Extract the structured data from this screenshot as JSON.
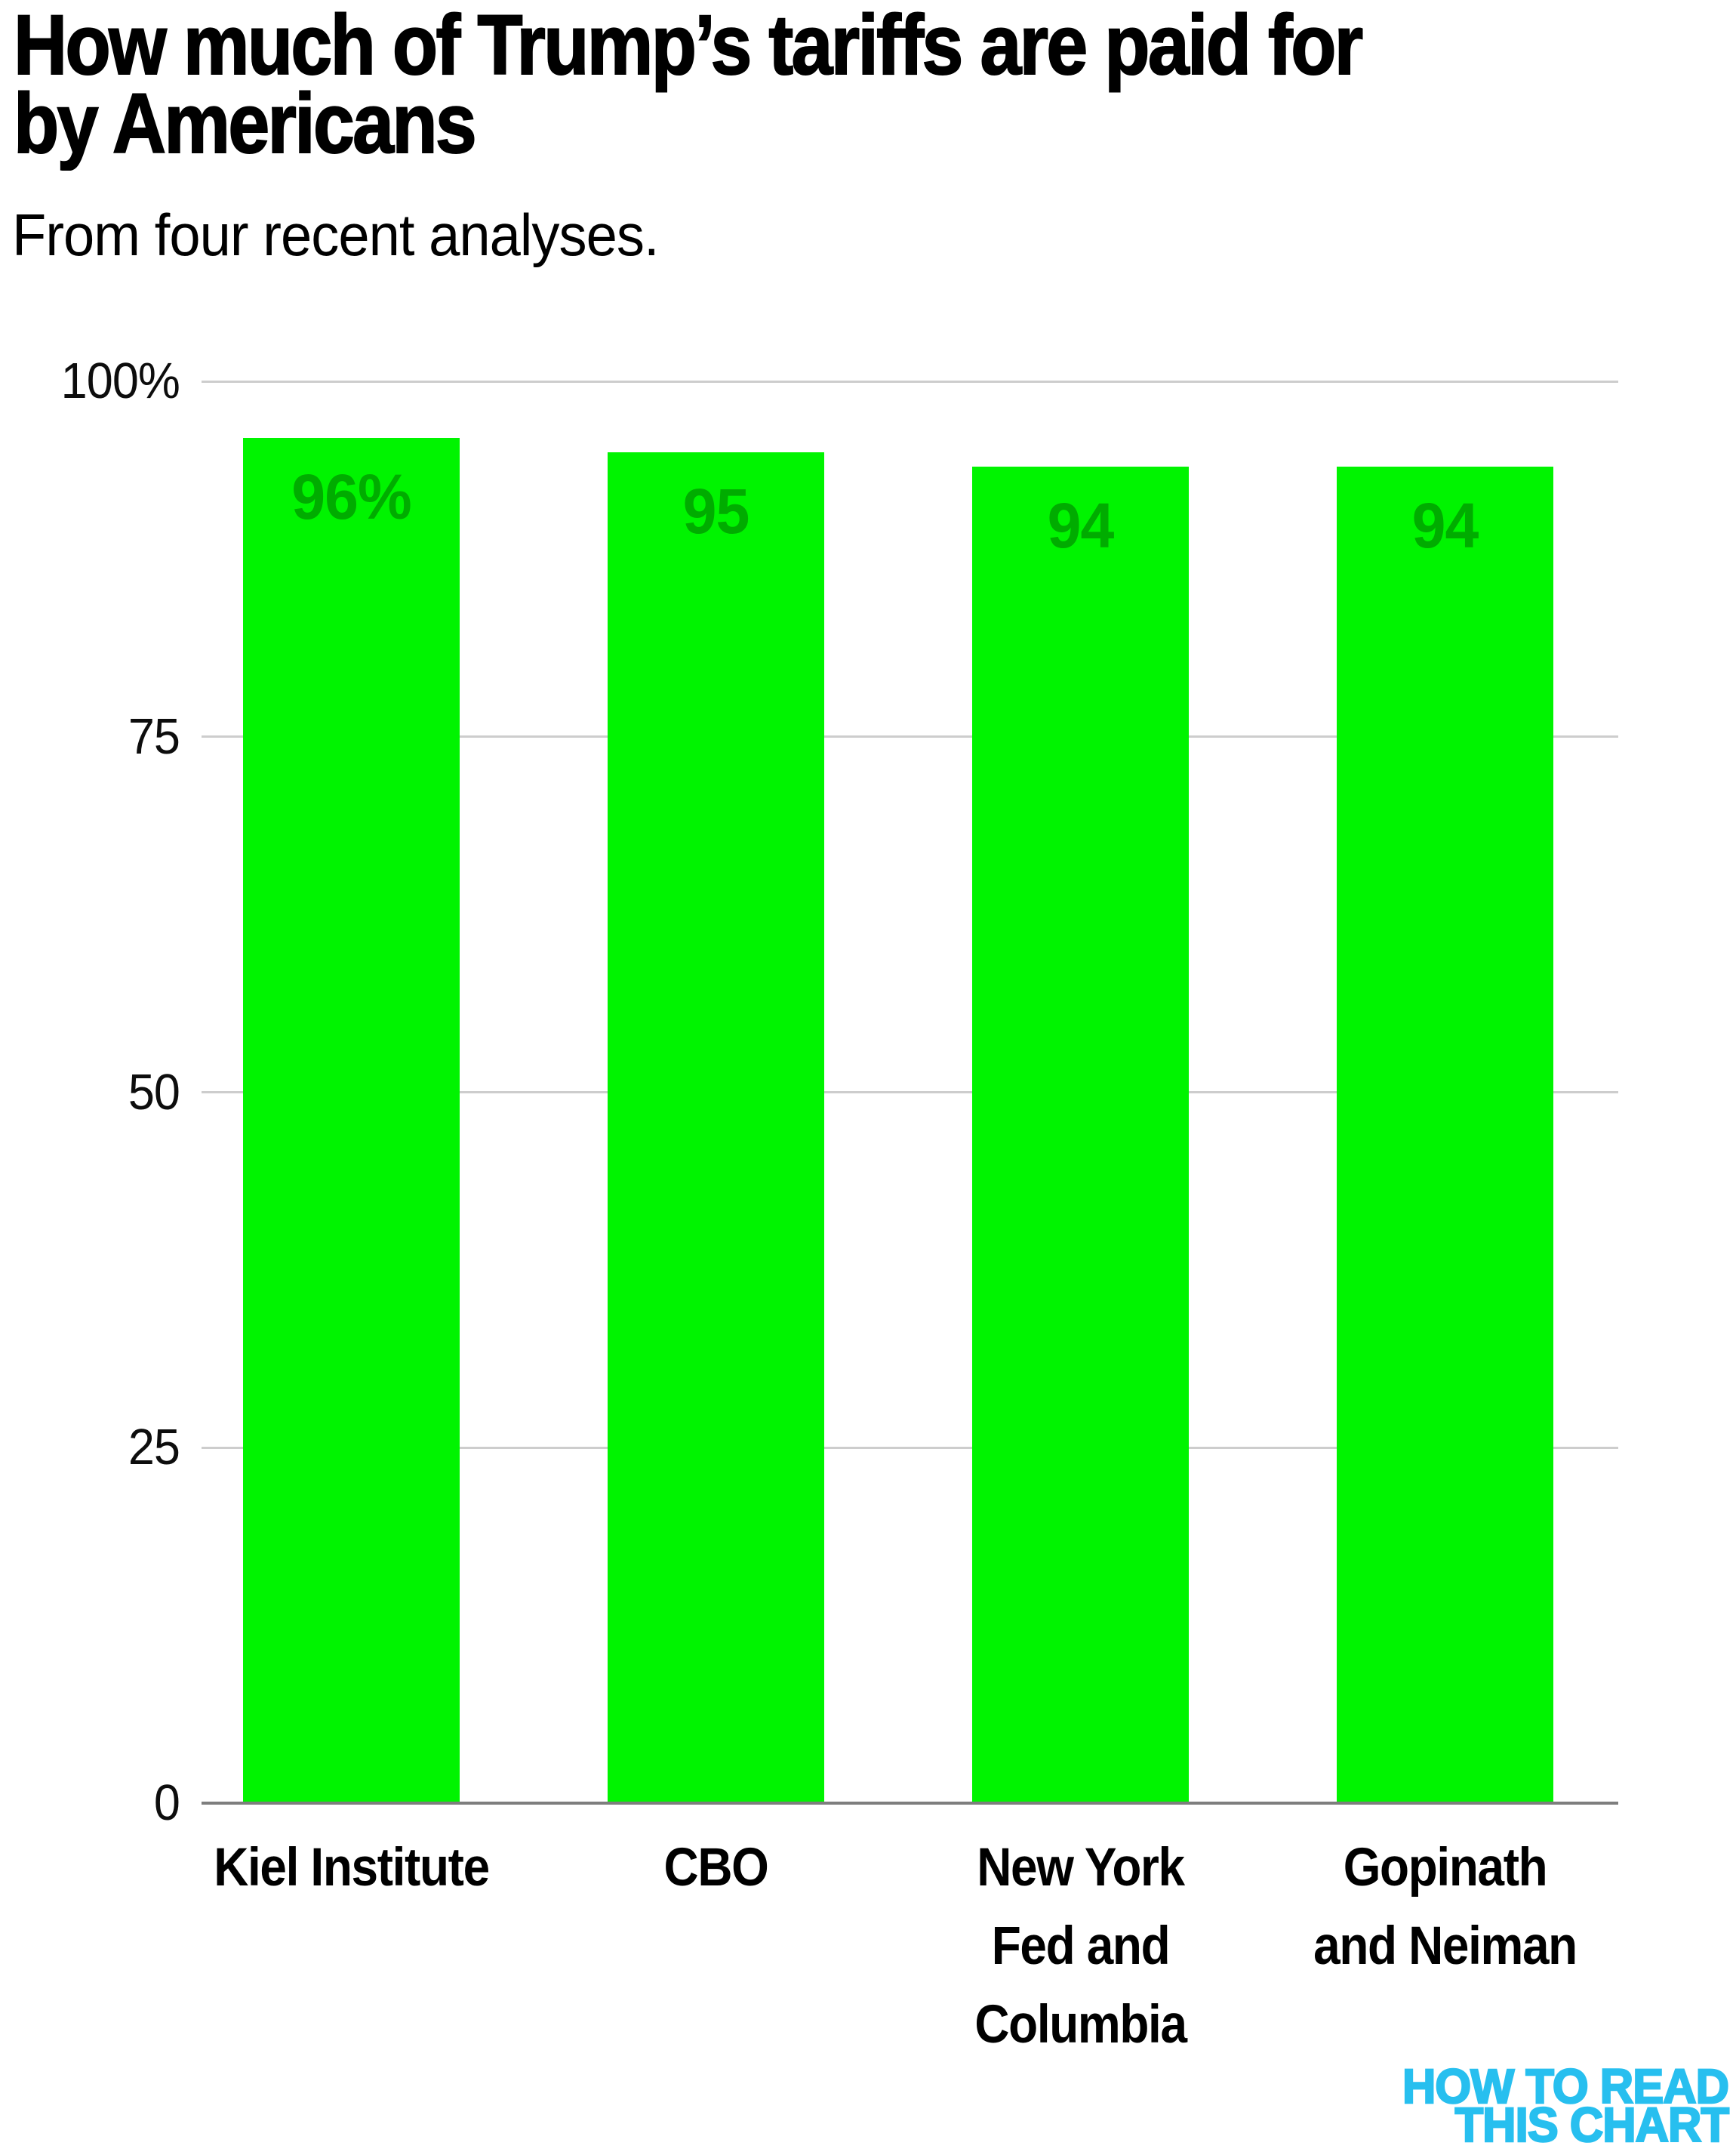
{
  "header": {
    "title": "How much of Trump’s tariffs are paid for by Americans",
    "title_lines": [
      "How much of Trump’s tariffs are paid for",
      "by Americans"
    ],
    "subtitle": "From four recent analyses."
  },
  "chart_data": {
    "type": "bar",
    "title": "How much of Trump’s tariffs are paid for by Americans",
    "subtitle": "From four recent analyses.",
    "categories": [
      "Kiel Institute",
      "CBO",
      "New York Fed and Columbia",
      "Gopinath and Neiman"
    ],
    "category_lines": [
      [
        "Kiel Institute"
      ],
      [
        "CBO"
      ],
      [
        "New York",
        "Fed and",
        "Columbia"
      ],
      [
        "Gopinath",
        "and Neiman"
      ]
    ],
    "values": [
      96,
      95,
      94,
      94
    ],
    "bar_labels": [
      "96%",
      "95",
      "94",
      "94"
    ],
    "unit": "percent",
    "xlabel": "",
    "ylabel": "",
    "ylim": [
      0,
      100
    ],
    "yticks": [
      0,
      25,
      50,
      75,
      100
    ],
    "ytick_labels": [
      "0",
      "25",
      "50",
      "75",
      "100%"
    ],
    "grid": "horizontal",
    "legend": "none",
    "bar_color": "#00f400",
    "bar_label_color": "#00ac00",
    "gridline_color": "#cdcdcd",
    "axis_line_color": "#7e7e7e"
  },
  "footer": {
    "logo_lines": [
      "HOW TO READ",
      "THIS CHART"
    ],
    "logo_color": "#27bfef"
  }
}
